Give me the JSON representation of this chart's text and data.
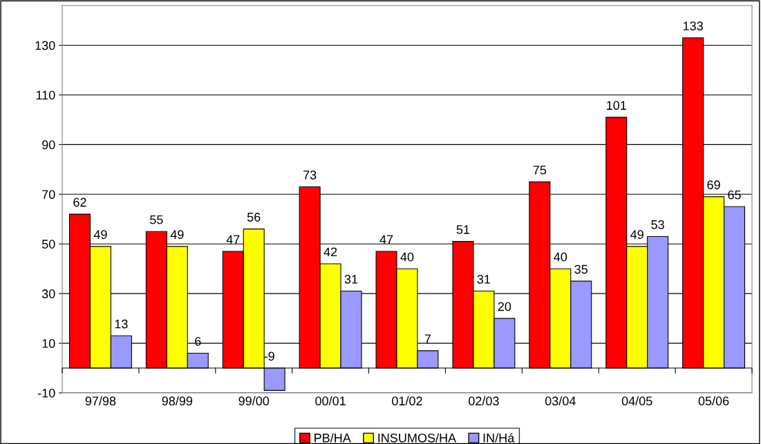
{
  "chart_data": {
    "type": "bar",
    "categories": [
      "97/98",
      "98/99",
      "99/00",
      "00/01",
      "01/02",
      "02/03",
      "03/04",
      "04/05",
      "05/06"
    ],
    "series": [
      {
        "name": "PB/HA",
        "color": "#ff0000",
        "values": [
          62,
          55,
          47,
          73,
          47,
          51,
          75,
          101,
          133
        ]
      },
      {
        "name": "INSUMOS/HA",
        "color": "#ffff00",
        "values": [
          49,
          49,
          56,
          42,
          40,
          31,
          40,
          49,
          69
        ]
      },
      {
        "name": "IN/Há",
        "color": "#9999ff",
        "values": [
          13,
          6,
          -9,
          31,
          7,
          20,
          35,
          53,
          65
        ]
      }
    ],
    "ylim": [
      -10,
      146
    ],
    "yticks": [
      -10,
      10,
      30,
      50,
      70,
      90,
      110,
      130
    ],
    "grid": "y",
    "legend": "bottom",
    "data_labels": true
  }
}
